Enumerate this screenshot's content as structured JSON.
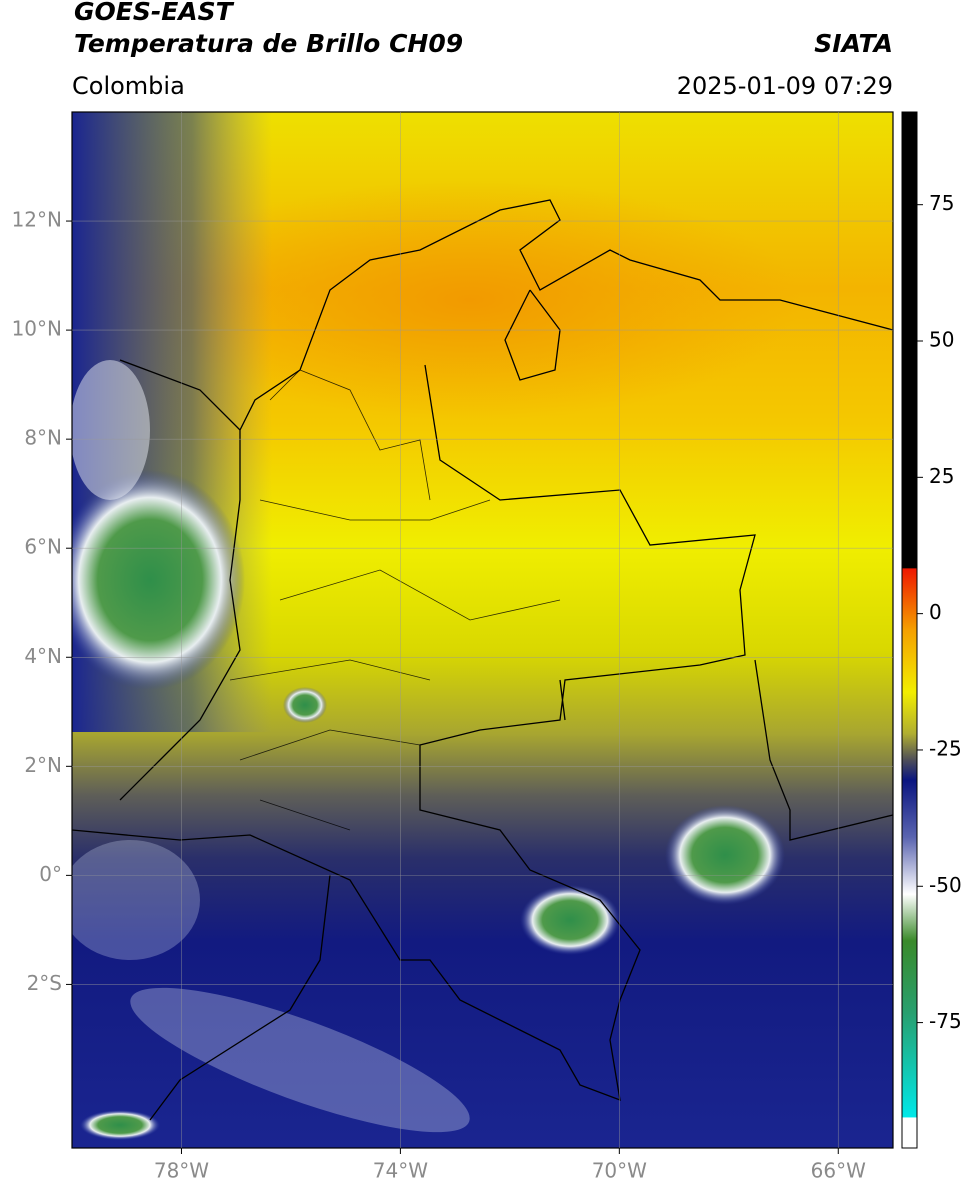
{
  "header": {
    "satellite": "GOES-EAST",
    "product": "Temperatura de Brillo CH09",
    "institution": "SIATA",
    "region": "Colombia",
    "timestamp": "2025-01-09 07:29"
  },
  "map": {
    "xlim": [
      -80,
      -65
    ],
    "ylim": [
      -5,
      14
    ],
    "lon_ticks": [
      {
        "value": -78,
        "label": "78°W"
      },
      {
        "value": -74,
        "label": "74°W"
      },
      {
        "value": -70,
        "label": "70°W"
      },
      {
        "value": -66,
        "label": "66°W"
      }
    ],
    "lat_ticks": [
      {
        "value": 12,
        "label": "12°N"
      },
      {
        "value": 10,
        "label": "10°N"
      },
      {
        "value": 8,
        "label": "8°N"
      },
      {
        "value": 6,
        "label": "6°N"
      },
      {
        "value": 4,
        "label": "4°N"
      },
      {
        "value": 2,
        "label": "2°N"
      },
      {
        "value": 0,
        "label": "0°"
      },
      {
        "value": -2,
        "label": "2°S"
      }
    ]
  },
  "colorbar": {
    "lim": [
      -98,
      92
    ],
    "ticks": [
      75,
      50,
      25,
      0,
      -25,
      -50,
      -75
    ]
  }
}
